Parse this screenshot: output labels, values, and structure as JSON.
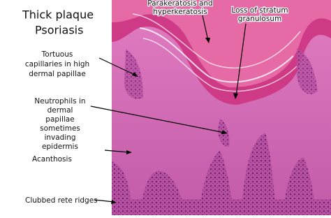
{
  "title": {
    "lines": [
      "Thick plaque",
      "Psoriasis"
    ]
  },
  "labels": {
    "parakeratosis": {
      "lines": [
        "Parakeratosis and",
        "hyperkeratosis"
      ]
    },
    "granulosum": {
      "lines": [
        "Loss of stratum",
        "granulosum"
      ]
    },
    "capillaries": {
      "lines": [
        "Tortuous",
        "capillaries in high",
        "dermal papillae"
      ]
    },
    "neutrophils": {
      "lines": [
        "Neutrophils in",
        "dermal",
        "papillae",
        "sometimes",
        "invading",
        "epidermis"
      ]
    },
    "acanthosis": {
      "lines": [
        "Acanthosis"
      ]
    },
    "rete": {
      "lines": [
        "Clubbed rete ridges"
      ]
    }
  }
}
